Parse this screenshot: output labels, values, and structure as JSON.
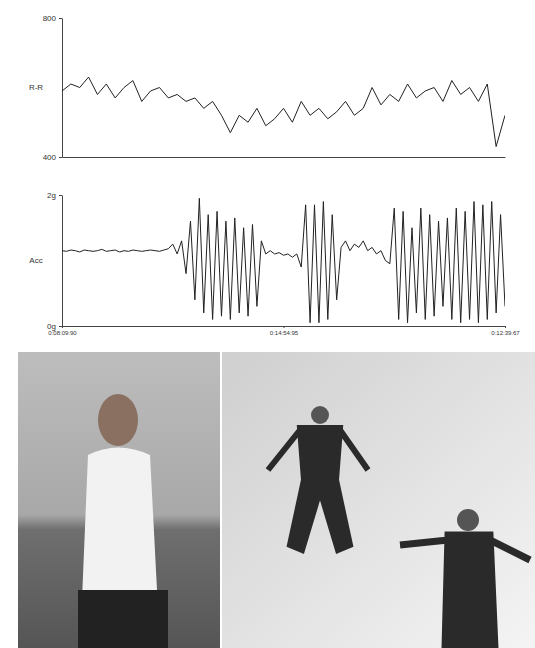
{
  "chart_data": [
    {
      "type": "line",
      "y_label": "R-R",
      "color": "#222222",
      "tick_labels": "y",
      "xlim": [
        0,
        100
      ],
      "ylim": [
        400,
        800
      ],
      "yticks": [
        400,
        800
      ],
      "x": [
        0,
        2,
        4,
        6,
        8,
        10,
        12,
        14,
        16,
        18,
        20,
        22,
        24,
        26,
        28,
        30,
        32,
        34,
        36,
        38,
        40,
        42,
        44,
        46,
        48,
        50,
        52,
        54,
        56,
        58,
        60,
        62,
        64,
        66,
        68,
        70,
        72,
        74,
        76,
        78,
        80,
        82,
        84,
        86,
        88,
        90,
        92,
        94,
        96,
        98,
        100
      ],
      "series": [
        {
          "values": [
            590,
            610,
            600,
            630,
            580,
            610,
            570,
            600,
            620,
            560,
            590,
            600,
            570,
            580,
            560,
            570,
            540,
            560,
            520,
            470,
            520,
            500,
            540,
            490,
            510,
            540,
            500,
            560,
            520,
            540,
            510,
            530,
            560,
            520,
            540,
            600,
            550,
            580,
            560,
            610,
            570,
            590,
            600,
            560,
            620,
            580,
            600,
            560,
            610,
            430,
            520
          ]
        }
      ]
    },
    {
      "type": "line",
      "y_label": "Acc",
      "color": "#222222",
      "xlim": [
        0,
        100
      ],
      "ylim": [
        0,
        2
      ],
      "yticks": [
        {
          "value": 0,
          "label": "0g"
        },
        {
          "value": 2,
          "label": "2g"
        }
      ],
      "xticks": [
        {
          "value": 0,
          "label": "0:08:09:90"
        },
        {
          "value": 50,
          "label": "0:14:54:95"
        },
        {
          "value": 100,
          "label": "0:12:39:67"
        }
      ],
      "x": [
        0,
        1,
        2,
        3,
        4,
        5,
        6,
        7,
        8,
        9,
        10,
        11,
        12,
        13,
        14,
        15,
        16,
        17,
        18,
        19,
        20,
        21,
        22,
        23,
        24,
        25,
        26,
        27,
        28,
        29,
        30,
        31,
        32,
        33,
        34,
        35,
        36,
        37,
        38,
        39,
        40,
        41,
        42,
        43,
        44,
        45,
        46,
        47,
        48,
        49,
        50,
        51,
        52,
        53,
        54,
        55,
        56,
        57,
        58,
        59,
        60,
        61,
        62,
        63,
        64,
        65,
        66,
        67,
        68,
        69,
        70,
        71,
        72,
        73,
        74,
        75,
        76,
        77,
        78,
        79,
        80,
        81,
        82,
        83,
        84,
        85,
        86,
        87,
        88,
        89,
        90,
        91,
        92,
        93,
        94,
        95,
        96,
        97,
        98,
        99,
        100
      ],
      "series": [
        {
          "values": [
            1.15,
            1.14,
            1.16,
            1.15,
            1.13,
            1.16,
            1.15,
            1.14,
            1.15,
            1.17,
            1.14,
            1.15,
            1.16,
            1.13,
            1.15,
            1.14,
            1.16,
            1.15,
            1.14,
            1.15,
            1.16,
            1.15,
            1.14,
            1.16,
            1.18,
            1.25,
            1.1,
            1.3,
            0.8,
            1.6,
            0.4,
            1.95,
            0.2,
            1.7,
            0.1,
            1.75,
            0.15,
            1.6,
            0.1,
            1.65,
            0.2,
            1.5,
            0.15,
            1.55,
            0.3,
            1.3,
            1.1,
            1.15,
            1.1,
            1.12,
            1.08,
            1.1,
            1.05,
            1.1,
            0.9,
            1.85,
            0.05,
            1.85,
            0.05,
            1.9,
            0.1,
            1.7,
            0.4,
            1.2,
            1.3,
            1.15,
            1.25,
            1.2,
            1.3,
            1.15,
            1.2,
            1.1,
            1.15,
            1.0,
            0.95,
            1.8,
            0.1,
            1.75,
            0.05,
            1.5,
            0.2,
            1.8,
            0.1,
            1.7,
            0.15,
            1.6,
            0.3,
            1.65,
            0.1,
            1.8,
            0.05,
            1.75,
            0.1,
            1.9,
            0.05,
            1.85,
            0.1,
            1.9,
            0.2,
            1.7,
            0.3
          ]
        }
      ]
    }
  ]
}
